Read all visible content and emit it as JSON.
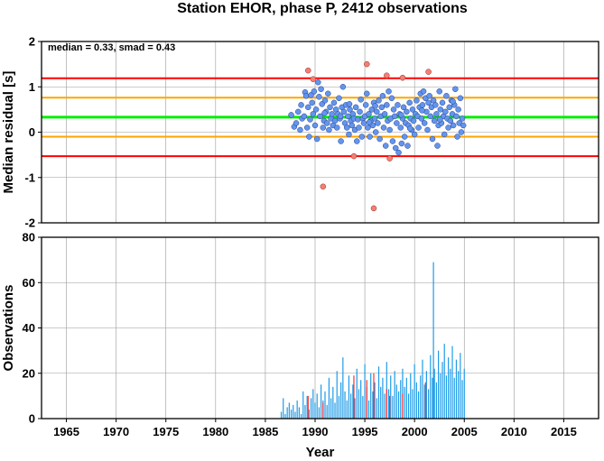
{
  "title": "Station EHOR, phase P, 2412 observations",
  "colors": {
    "median_line": "#00ee00",
    "smad_line": "#ffa500",
    "limit_line": "#ff0000",
    "point_normal": "#6495ed",
    "point_outlier": "#f47f73",
    "bar_normal": "#1e9be8",
    "bar_flagged": "#ff3030"
  },
  "chart_data": [
    {
      "type": "scatter",
      "annotation": "median = 0.33, smad = 0.43",
      "ylabel": "Median residual [s]",
      "xlim": [
        1962.5,
        2018.5
      ],
      "ylim": [
        -2,
        2
      ],
      "yticks": [
        "2",
        "1",
        "0",
        "-1",
        "-2"
      ],
      "grid": true,
      "hlines": {
        "median": 0.33,
        "inner": [
          0.76,
          -0.1
        ],
        "outer": [
          1.19,
          -0.53
        ]
      },
      "points": [
        [
          1987.6,
          0.38
        ],
        [
          1987.9,
          0.12
        ],
        [
          1988.1,
          0.2
        ],
        [
          1988.3,
          0.45
        ],
        [
          1988.5,
          0.05
        ],
        [
          1988.7,
          0.3
        ],
        [
          1988.9,
          0.35
        ],
        [
          1989.0,
          0.88
        ],
        [
          1989.1,
          0.8
        ],
        [
          1989.2,
          0.1
        ],
        [
          1989.3,
          0.55
        ],
        [
          1989.4,
          -0.1
        ],
        [
          1989.5,
          0.28
        ],
        [
          1989.6,
          0.82
        ],
        [
          1989.7,
          0.65
        ],
        [
          1989.8,
          0.4
        ],
        [
          1989.9,
          0.9
        ],
        [
          1990.0,
          0.15
        ],
        [
          1990.1,
          0.5
        ],
        [
          1990.2,
          -0.15
        ],
        [
          1990.3,
          1.1
        ],
        [
          1990.4,
          0.78
        ],
        [
          1990.5,
          0.35
        ],
        [
          1990.6,
          0.95
        ],
        [
          1990.7,
          0.62
        ],
        [
          1990.8,
          0.1
        ],
        [
          1990.9,
          0.25
        ],
        [
          1991.0,
          0.7
        ],
        [
          1991.1,
          0.45
        ],
        [
          1991.2,
          0.2
        ],
        [
          1991.3,
          0.85
        ],
        [
          1991.4,
          0.05
        ],
        [
          1991.5,
          0.55
        ],
        [
          1991.6,
          0.3
        ],
        [
          1991.7,
          0.4
        ],
        [
          1991.8,
          0.15
        ],
        [
          1991.9,
          0.65
        ],
        [
          1992.0,
          0.25
        ],
        [
          1992.1,
          0.5
        ],
        [
          1992.2,
          0.1
        ],
        [
          1992.3,
          0.4
        ],
        [
          1992.4,
          0.75
        ],
        [
          1992.5,
          0.3
        ],
        [
          1992.6,
          -0.2
        ],
        [
          1992.7,
          0.55
        ],
        [
          1992.8,
          1.0
        ],
        [
          1992.9,
          0.45
        ],
        [
          1993.0,
          0.2
        ],
        [
          1993.1,
          0.6
        ],
        [
          1993.2,
          0.1
        ],
        [
          1993.3,
          0.35
        ],
        [
          1993.4,
          -0.05
        ],
        [
          1993.5,
          0.5
        ],
        [
          1993.6,
          0.25
        ],
        [
          1993.7,
          0.15
        ],
        [
          1993.8,
          0.4
        ],
        [
          1993.9,
          0.3
        ],
        [
          1994.0,
          0.05
        ],
        [
          1994.1,
          0.55
        ],
        [
          1994.2,
          -0.2
        ],
        [
          1994.3,
          0.28
        ],
        [
          1994.4,
          0.1
        ],
        [
          1994.5,
          0.45
        ],
        [
          1994.6,
          0.72
        ],
        [
          1994.7,
          -0.1
        ],
        [
          1994.8,
          0.3
        ],
        [
          1994.9,
          0.2
        ],
        [
          1995.0,
          0.35
        ],
        [
          1995.1,
          0.6
        ],
        [
          1995.2,
          0.85
        ],
        [
          1995.3,
          0.1
        ],
        [
          1995.4,
          0.4
        ],
        [
          1995.5,
          -0.1
        ],
        [
          1995.6,
          0.25
        ],
        [
          1995.7,
          0.5
        ],
        [
          1995.8,
          0.15
        ],
        [
          1995.9,
          0.65
        ],
        [
          1996.0,
          0.3
        ],
        [
          1996.1,
          0.0
        ],
        [
          1996.2,
          0.45
        ],
        [
          1996.3,
          0.2
        ],
        [
          1996.4,
          0.7
        ],
        [
          1996.5,
          -0.15
        ],
        [
          1996.6,
          0.35
        ],
        [
          1996.7,
          0.55
        ],
        [
          1996.8,
          0.8
        ],
        [
          1996.9,
          0.1
        ],
        [
          1997.0,
          0.4
        ],
        [
          1997.1,
          -0.3
        ],
        [
          1997.2,
          0.6
        ],
        [
          1997.3,
          0.25
        ],
        [
          1997.4,
          0.9
        ],
        [
          1997.5,
          0.05
        ],
        [
          1997.6,
          0.3
        ],
        [
          1997.7,
          0.75
        ],
        [
          1997.8,
          -0.2
        ],
        [
          1997.9,
          0.5
        ],
        [
          1998.0,
          0.35
        ],
        [
          1998.1,
          -0.35
        ],
        [
          1998.2,
          0.2
        ],
        [
          1998.3,
          0.6
        ],
        [
          1998.4,
          -0.45
        ],
        [
          1998.5,
          0.4
        ],
        [
          1998.6,
          0.1
        ],
        [
          1998.7,
          -0.25
        ],
        [
          1998.8,
          0.3
        ],
        [
          1998.9,
          0.55
        ],
        [
          1999.0,
          -0.1
        ],
        [
          1999.1,
          0.2
        ],
        [
          1999.2,
          0.45
        ],
        [
          1999.3,
          -0.3
        ],
        [
          1999.4,
          0.15
        ],
        [
          1999.5,
          0.65
        ],
        [
          1999.6,
          0.3
        ],
        [
          1999.7,
          0.05
        ],
        [
          1999.8,
          0.5
        ],
        [
          1999.9,
          0.25
        ],
        [
          2000.0,
          -0.05
        ],
        [
          2000.1,
          0.4
        ],
        [
          2000.2,
          0.7
        ],
        [
          2000.3,
          0.35
        ],
        [
          2000.4,
          0.1
        ],
        [
          2000.5,
          0.55
        ],
        [
          2000.6,
          0.85
        ],
        [
          2000.7,
          0.3
        ],
        [
          2000.8,
          0.6
        ],
        [
          2000.9,
          0.9
        ],
        [
          2001.0,
          0.2
        ],
        [
          2001.1,
          0.75
        ],
        [
          2001.2,
          0.45
        ],
        [
          2001.3,
          0.05
        ],
        [
          2001.4,
          0.65
        ],
        [
          2001.5,
          0.8
        ],
        [
          2001.6,
          0.35
        ],
        [
          2001.7,
          0.55
        ],
        [
          2001.8,
          -0.15
        ],
        [
          2001.9,
          0.7
        ],
        [
          2002.0,
          0.25
        ],
        [
          2002.1,
          0.6
        ],
        [
          2002.2,
          0.4
        ],
        [
          2002.3,
          -0.3
        ],
        [
          2002.4,
          0.15
        ],
        [
          2002.5,
          0.9
        ],
        [
          2002.6,
          0.5
        ],
        [
          2002.7,
          0.2
        ],
        [
          2002.8,
          0.65
        ],
        [
          2002.9,
          0.35
        ],
        [
          2003.0,
          -0.05
        ],
        [
          2003.1,
          0.45
        ],
        [
          2003.2,
          0.8
        ],
        [
          2003.3,
          0.3
        ],
        [
          2003.4,
          0.1
        ],
        [
          2003.5,
          0.55
        ],
        [
          2003.6,
          0.25
        ],
        [
          2003.7,
          0.7
        ],
        [
          2003.8,
          0.4
        ],
        [
          2003.9,
          0.15
        ],
        [
          2004.0,
          0.6
        ],
        [
          2004.1,
          0.95
        ],
        [
          2004.2,
          0.35
        ],
        [
          2004.3,
          -0.1
        ],
        [
          2004.4,
          0.5
        ],
        [
          2004.5,
          0.2
        ],
        [
          2004.6,
          0.75
        ],
        [
          2004.7,
          0.0
        ],
        [
          2004.8,
          0.3
        ],
        [
          2004.9,
          0.15
        ],
        [
          1988.6,
          0.6
        ],
        [
          1990.95,
          0.42
        ],
        [
          1993.45,
          0.62
        ],
        [
          1996.05,
          0.58
        ],
        [
          1999.55,
          0.08
        ],
        [
          2002.55,
          0.28
        ],
        [
          2003.85,
          0.68
        ],
        [
          1995.45,
          0.22
        ],
        [
          1992.55,
          0.35
        ],
        [
          1998.65,
          0.38
        ],
        [
          2000.75,
          0.48
        ]
      ],
      "outliers": [
        [
          1989.3,
          1.36
        ],
        [
          1989.8,
          1.17
        ],
        [
          1990.8,
          -1.2
        ],
        [
          1993.9,
          -0.53
        ],
        [
          1995.2,
          1.5
        ],
        [
          1995.9,
          -1.68
        ],
        [
          1997.2,
          1.25
        ],
        [
          1997.5,
          -0.58
        ],
        [
          1998.8,
          1.2
        ],
        [
          2001.4,
          1.33
        ]
      ]
    },
    {
      "type": "bar",
      "xlabel": "Year",
      "ylabel": "Observations",
      "xlim": [
        1962.5,
        2018.5
      ],
      "ylim": [
        0,
        80
      ],
      "xticks": [
        "1965",
        "1970",
        "1975",
        "1980",
        "1985",
        "1990",
        "1995",
        "2000",
        "2005",
        "2010",
        "2015"
      ],
      "yticks": [
        "80",
        "60",
        "40",
        "20",
        "0"
      ],
      "grid": true,
      "bars": [
        [
          1986.6,
          3
        ],
        [
          1986.8,
          9
        ],
        [
          1987.0,
          2
        ],
        [
          1987.2,
          5
        ],
        [
          1987.4,
          7
        ],
        [
          1987.6,
          4
        ],
        [
          1987.8,
          6
        ],
        [
          1988.0,
          3
        ],
        [
          1988.2,
          8
        ],
        [
          1988.4,
          5
        ],
        [
          1988.6,
          2
        ],
        [
          1988.8,
          12
        ],
        [
          1989.0,
          6
        ],
        [
          1989.2,
          10
        ],
        [
          1989.4,
          4
        ],
        [
          1989.6,
          9
        ],
        [
          1989.8,
          13
        ],
        [
          1990.0,
          7
        ],
        [
          1990.2,
          11
        ],
        [
          1990.4,
          5
        ],
        [
          1990.6,
          15
        ],
        [
          1990.8,
          8
        ],
        [
          1991.0,
          12
        ],
        [
          1991.2,
          6
        ],
        [
          1991.4,
          18
        ],
        [
          1991.6,
          9
        ],
        [
          1991.8,
          14
        ],
        [
          1992.0,
          7
        ],
        [
          1992.2,
          21
        ],
        [
          1992.4,
          10
        ],
        [
          1992.6,
          16
        ],
        [
          1992.8,
          27
        ],
        [
          1993.0,
          12
        ],
        [
          1993.2,
          8
        ],
        [
          1993.4,
          19
        ],
        [
          1993.6,
          11
        ],
        [
          1993.8,
          15
        ],
        [
          1994.0,
          9
        ],
        [
          1994.2,
          22
        ],
        [
          1994.4,
          13
        ],
        [
          1994.6,
          17
        ],
        [
          1994.8,
          10
        ],
        [
          1995.0,
          24
        ],
        [
          1995.2,
          14
        ],
        [
          1995.4,
          8
        ],
        [
          1995.6,
          20
        ],
        [
          1995.8,
          12
        ],
        [
          1996.0,
          16
        ],
        [
          1996.2,
          9
        ],
        [
          1996.4,
          23
        ],
        [
          1996.6,
          14
        ],
        [
          1996.8,
          18
        ],
        [
          1997.0,
          11
        ],
        [
          1997.2,
          25
        ],
        [
          1997.4,
          13
        ],
        [
          1997.6,
          19
        ],
        [
          1997.8,
          10
        ],
        [
          1998.0,
          21
        ],
        [
          1998.2,
          15
        ],
        [
          1998.4,
          12
        ],
        [
          1998.6,
          17
        ],
        [
          1998.8,
          22
        ],
        [
          1999.0,
          14
        ],
        [
          1999.2,
          18
        ],
        [
          1999.4,
          11
        ],
        [
          1999.6,
          20
        ],
        [
          1999.8,
          13
        ],
        [
          2000.0,
          24
        ],
        [
          2000.2,
          16
        ],
        [
          2000.4,
          12
        ],
        [
          2000.6,
          19
        ],
        [
          2000.8,
          26
        ],
        [
          2001.0,
          15
        ],
        [
          2001.2,
          21
        ],
        [
          2001.4,
          13
        ],
        [
          2001.6,
          28
        ],
        [
          2001.8,
          18
        ],
        [
          2001.9,
          69
        ],
        [
          2002.0,
          22
        ],
        [
          2002.2,
          16
        ],
        [
          2002.4,
          30
        ],
        [
          2002.6,
          20
        ],
        [
          2002.8,
          25
        ],
        [
          2003.0,
          33
        ],
        [
          2003.2,
          19
        ],
        [
          2003.4,
          27
        ],
        [
          2003.6,
          22
        ],
        [
          2003.8,
          32
        ],
        [
          2004.0,
          18
        ],
        [
          2004.2,
          26
        ],
        [
          2004.4,
          21
        ],
        [
          2004.6,
          29
        ],
        [
          2004.8,
          17
        ],
        [
          2005.0,
          22
        ]
      ],
      "flagged_bars": [
        [
          1989.3,
          10
        ],
        [
          1990.8,
          7
        ],
        [
          1993.9,
          19
        ],
        [
          1995.2,
          17
        ],
        [
          1995.9,
          20
        ],
        [
          1997.2,
          13
        ],
        [
          1997.5,
          10
        ],
        [
          1998.8,
          11
        ],
        [
          2001.1,
          16
        ]
      ]
    }
  ]
}
